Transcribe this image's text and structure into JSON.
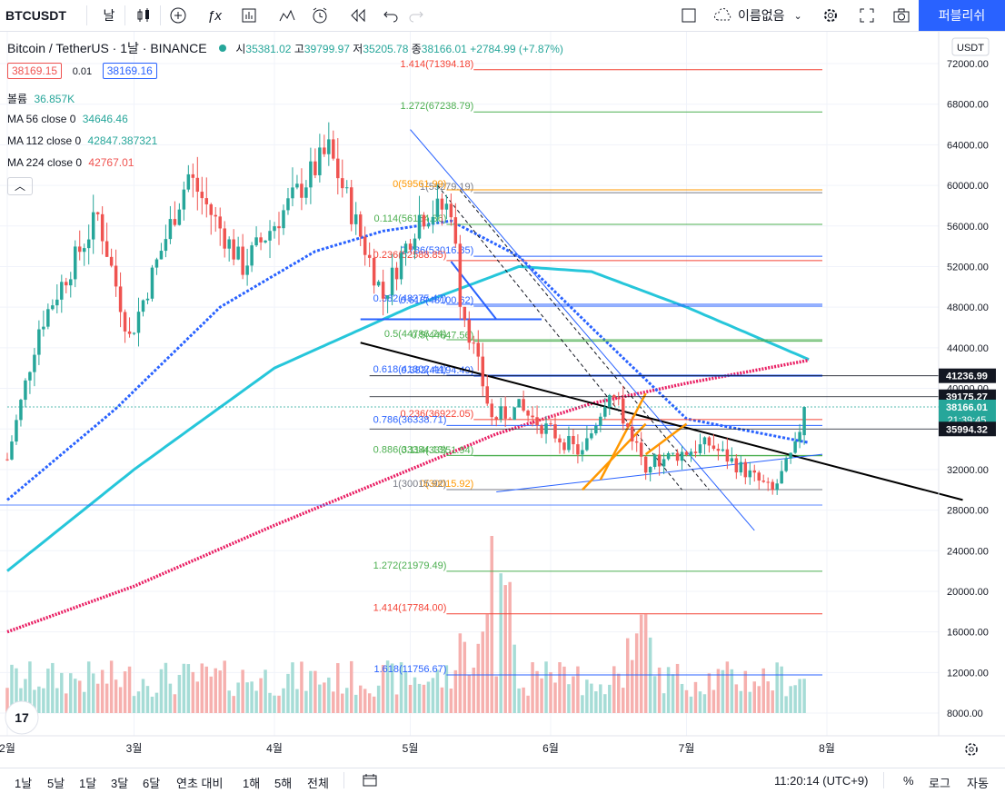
{
  "toolbar": {
    "symbol": "BTCUSDT",
    "interval": "날",
    "layout_name": "이름없음",
    "publish_label": "퍼블리쉬"
  },
  "legend": {
    "title": "Bitcoin / TetherUS · 1날 · BINANCE",
    "o_label": "시",
    "o": "35381.02",
    "h_label": "고",
    "h": "39799.97",
    "l_label": "저",
    "l": "35205.78",
    "c_label": "종",
    "c": "38166.01",
    "change": "+2784.99 (+7.87%)",
    "bid": "38169.15",
    "spread": "0.01",
    "ask": "38169.16",
    "volume_label": "볼륨",
    "volume": "36.857K",
    "ma56_label": "MA 56 close 0",
    "ma56": "34646.46",
    "ma112_label": "MA 112 close 0",
    "ma112": "42847.387321",
    "ma224_label": "MA 224 close 0",
    "ma224": "42767.01"
  },
  "currency": "USDT",
  "bottombar": {
    "ranges": [
      "1날",
      "5날",
      "1달",
      "3달",
      "6달",
      "연초 대비",
      "1해",
      "5해",
      "전체"
    ],
    "time": "11:20:14 (UTC+9)",
    "percent": "%",
    "log": "로그",
    "auto": "자동"
  },
  "colors": {
    "up": "#26a69a",
    "down": "#ef5350",
    "ma56": "#26c6da",
    "ma112": "#2962ff",
    "ma224": "#e91e63",
    "accent": "#2962ff"
  },
  "chart_data": {
    "type": "candlestick",
    "x_range": [
      "2021-02-01",
      "2021-08-31"
    ],
    "ylim": [
      6000,
      73000
    ],
    "y_ticks": [
      8000,
      12000,
      16000,
      20000,
      24000,
      28000,
      32000,
      36000,
      40000,
      44000,
      48000,
      52000,
      56000,
      60000,
      64000,
      68000,
      72000
    ],
    "x_ticks": [
      {
        "date": "2021-02-01",
        "label": "2월"
      },
      {
        "date": "2021-03-01",
        "label": "3월"
      },
      {
        "date": "2021-04-01",
        "label": "4월"
      },
      {
        "date": "2021-05-01",
        "label": "5월"
      },
      {
        "date": "2021-06-01",
        "label": "6월"
      },
      {
        "date": "2021-07-01",
        "label": "7월"
      },
      {
        "date": "2021-08-01",
        "label": "8월"
      }
    ],
    "price_anchors": [
      [
        "2021-02-01",
        33000
      ],
      [
        "2021-02-08",
        46000
      ],
      [
        "2021-02-21",
        57000
      ],
      [
        "2021-02-28",
        45000
      ],
      [
        "2021-03-13",
        61000
      ],
      [
        "2021-03-25",
        52000
      ],
      [
        "2021-04-13",
        63500
      ],
      [
        "2021-04-25",
        49000
      ],
      [
        "2021-05-03",
        57000
      ],
      [
        "2021-05-10",
        58000
      ],
      [
        "2021-05-12",
        49000
      ],
      [
        "2021-05-19",
        37000
      ],
      [
        "2021-05-25",
        38000
      ],
      [
        "2021-06-08",
        33500
      ],
      [
        "2021-06-14",
        40000
      ],
      [
        "2021-06-22",
        32500
      ],
      [
        "2021-07-06",
        34500
      ],
      [
        "2021-07-20",
        29800
      ],
      [
        "2021-07-25",
        34000
      ],
      [
        "2021-07-27",
        38166
      ]
    ],
    "axis_price_labels": [
      {
        "value": "41236.99",
        "price": 41237,
        "bg": "#131722",
        "color": "#ffffff"
      },
      {
        "value": "39175.27",
        "price": 39175,
        "bg": "#131722",
        "color": "#ffffff"
      },
      {
        "value": "38166.01",
        "price": 38166,
        "bg": "#26a69a",
        "color": "#ffffff",
        "sub": "21:39:45"
      },
      {
        "value": "35994.32",
        "price": 35994,
        "bg": "#131722",
        "color": "#ffffff"
      }
    ],
    "fib_upper": {
      "start": "2021-05-09",
      "end": "2021-07-31",
      "levels": [
        {
          "label": "0(59561.99)",
          "price": 59562,
          "color": "#ff9800"
        },
        {
          "label": "0.114(56154.36)",
          "price": 56154,
          "color": "#4caf50"
        },
        {
          "label": "0.236(52588.85)",
          "price": 52589,
          "color": "#f44336"
        },
        {
          "label": "0.382(48275.47)",
          "price": 48275,
          "color": "#2962ff"
        },
        {
          "label": "0.5(44786.74)",
          "price": 44787,
          "color": "#4caf50"
        },
        {
          "label": "0.618(41302.44)",
          "price": 41302,
          "color": "#2962ff"
        },
        {
          "label": "0.786(36338.71)",
          "price": 36339,
          "color": "#2962ff"
        },
        {
          "label": "0.886(33384.13)",
          "price": 33384,
          "color": "#4caf50"
        },
        {
          "label": "1(30015.92)",
          "price": 30016,
          "color": "#787b86"
        },
        {
          "label": "1.272(21979.49)",
          "price": 21979,
          "color": "#4caf50"
        },
        {
          "label": "1.414(17784.00)",
          "price": 17784,
          "color": "#f44336"
        },
        {
          "label": "1.618(11756.67)",
          "price": 11757,
          "color": "#2962ff"
        }
      ]
    },
    "fib_lower": {
      "start": "2021-05-15",
      "end": "2021-07-31",
      "levels": [
        {
          "label": "1.414(71394.18)",
          "price": 71394,
          "color": "#f44336"
        },
        {
          "label": "1.272(67238.79)",
          "price": 67239,
          "color": "#4caf50"
        },
        {
          "label": "1(59279.19)",
          "price": 59279,
          "color": "#787b86"
        },
        {
          "label": "0.786(53016.85)",
          "price": 53017,
          "color": "#2962ff"
        },
        {
          "label": "0.618(48100.62)",
          "price": 48100,
          "color": "#2962ff"
        },
        {
          "label": "0.5(44647.56)",
          "price": 44648,
          "color": "#4caf50"
        },
        {
          "label": "0.382(41194.49)",
          "price": 41194,
          "color": "#2962ff"
        },
        {
          "label": "0.236(36922.05)",
          "price": 36922,
          "color": "#f44336"
        },
        {
          "label": "0.114(33351.94)",
          "price": 33352,
          "color": "#4caf50"
        },
        {
          "label": "0(30015.92)",
          "price": 30016,
          "color": "#ff9800"
        }
      ]
    },
    "ma224_anchors": [
      [
        "2021-02-01",
        16000
      ],
      [
        "2021-03-01",
        20500
      ],
      [
        "2021-04-01",
        26500
      ],
      [
        "2021-05-01",
        32000
      ],
      [
        "2021-05-20",
        35500
      ],
      [
        "2021-06-10",
        38500
      ],
      [
        "2021-07-01",
        40500
      ],
      [
        "2021-07-28",
        42767
      ]
    ],
    "ma112_anchors": [
      [
        "2021-02-01",
        22000
      ],
      [
        "2021-03-01",
        32000
      ],
      [
        "2021-04-01",
        42000
      ],
      [
        "2021-05-01",
        48000
      ],
      [
        "2021-05-25",
        52000
      ],
      [
        "2021-06-10",
        51500
      ],
      [
        "2021-07-01",
        48000
      ],
      [
        "2021-07-28",
        42847
      ]
    ],
    "ma56_anchors": [
      [
        "2021-02-01",
        29000
      ],
      [
        "2021-02-25",
        38000
      ],
      [
        "2021-03-20",
        48000
      ],
      [
        "2021-04-10",
        53500
      ],
      [
        "2021-04-25",
        55500
      ],
      [
        "2021-05-10",
        56500
      ],
      [
        "2021-05-25",
        53000
      ],
      [
        "2021-06-10",
        46000
      ],
      [
        "2021-07-01",
        37000
      ],
      [
        "2021-07-28",
        34646
      ]
    ]
  }
}
